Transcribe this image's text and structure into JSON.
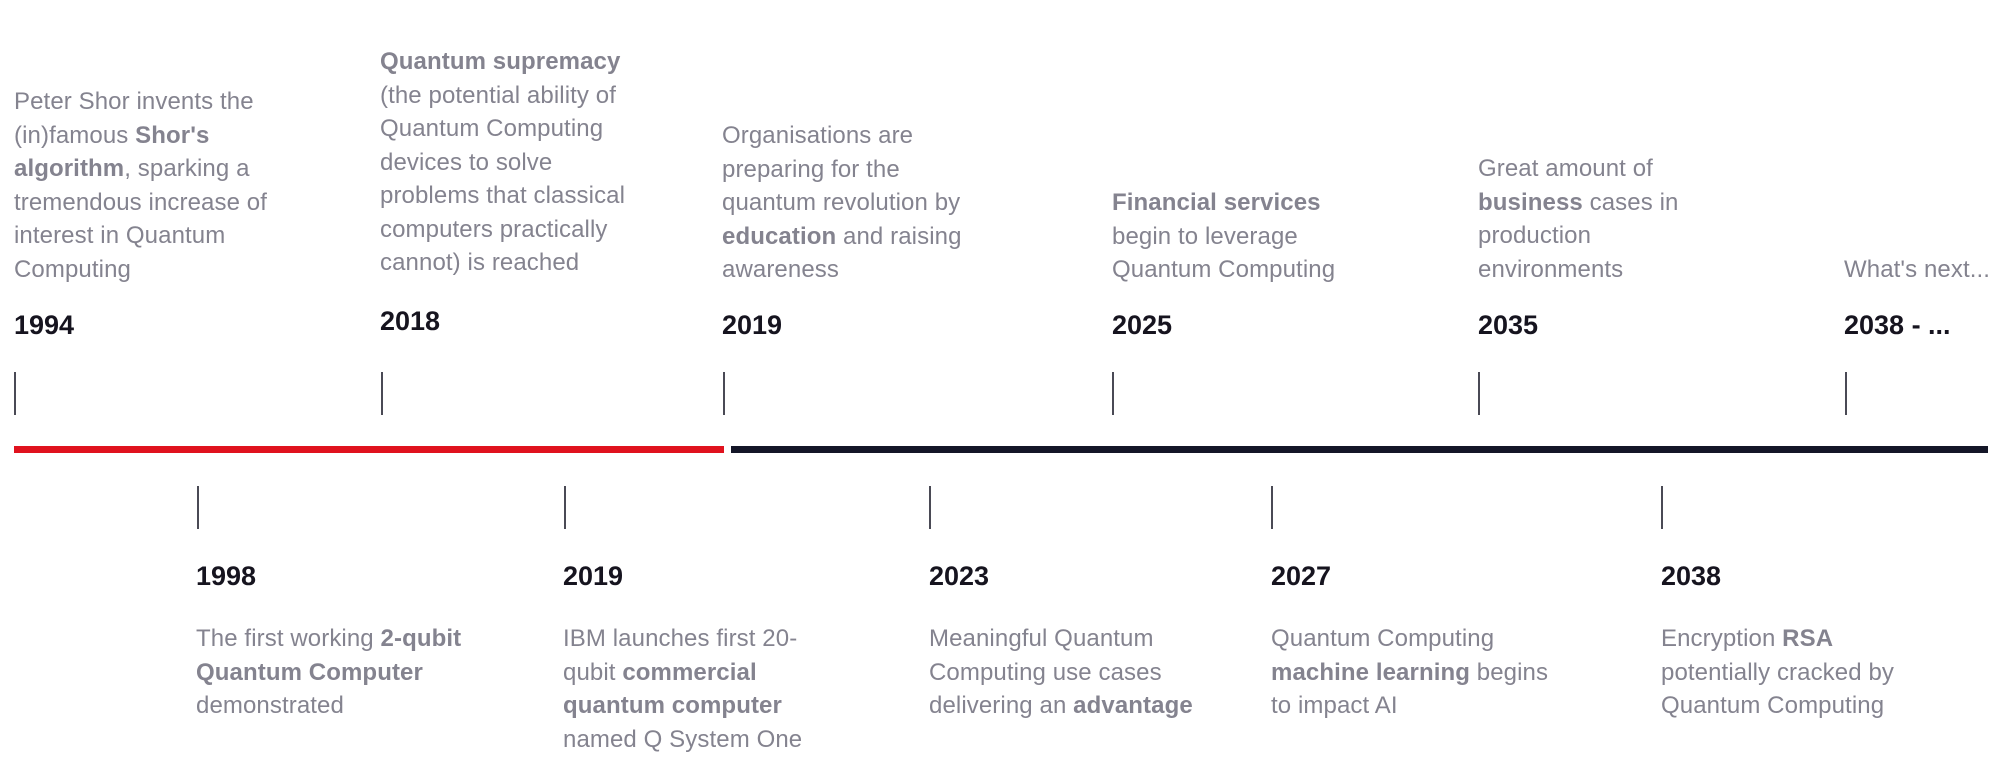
{
  "colors": {
    "past_line": "#e0121e",
    "future_line": "#141628",
    "year_text": "#16141f",
    "description_text": "#84838f"
  },
  "timeline": {
    "top_events": [
      {
        "year": "1994",
        "description": [
          {
            "text": "Peter Shor invents the (in)famous ",
            "bold": false
          },
          {
            "text": "Shor's algorithm",
            "bold": true
          },
          {
            "text": ", sparking a tremendous increase of interest in Quantum Computing",
            "bold": false
          }
        ]
      },
      {
        "year": "2018",
        "description": [
          {
            "text": "Quantum supremacy",
            "bold": true
          },
          {
            "text": " (the potential ability of Quantum Computing devices to solve problems that classical computers practically cannot) is reached",
            "bold": false
          }
        ]
      },
      {
        "year": "2019",
        "description": [
          {
            "text": "Organisations are preparing for the quantum revolution by ",
            "bold": false
          },
          {
            "text": "education",
            "bold": true
          },
          {
            "text": " and raising awareness",
            "bold": false
          }
        ]
      },
      {
        "year": "2025",
        "description": [
          {
            "text": "Financial services",
            "bold": true
          },
          {
            "text": " begin to leverage Quantum Computing",
            "bold": false
          }
        ]
      },
      {
        "year": "2035",
        "description": [
          {
            "text": "Great amount of ",
            "bold": false
          },
          {
            "text": "business",
            "bold": true
          },
          {
            "text": " cases in production environments",
            "bold": false
          }
        ]
      },
      {
        "year": "2038 - ...",
        "description": [
          {
            "text": "What's next...",
            "bold": false
          }
        ]
      }
    ],
    "bottom_events": [
      {
        "year": "1998",
        "description": [
          {
            "text": "The first working ",
            "bold": false
          },
          {
            "text": "2-qubit Quantum Computer",
            "bold": true
          },
          {
            "text": " demonstrated",
            "bold": false
          }
        ]
      },
      {
        "year": "2019",
        "description": [
          {
            "text": "IBM launches first 20-qubit ",
            "bold": false
          },
          {
            "text": "commercial quantum computer",
            "bold": true
          },
          {
            "text": " named Q System One",
            "bold": false
          }
        ]
      },
      {
        "year": "2023",
        "description": [
          {
            "text": "Meaningful Quantum Computing use cases delivering an ",
            "bold": false
          },
          {
            "text": "advantage",
            "bold": true
          }
        ]
      },
      {
        "year": "2027",
        "description": [
          {
            "text": "Quantum Computing ",
            "bold": false
          },
          {
            "text": "machine learning",
            "bold": true
          },
          {
            "text": " begins to impact AI",
            "bold": false
          }
        ]
      },
      {
        "year": "2038",
        "description": [
          {
            "text": "Encryption ",
            "bold": false
          },
          {
            "text": "RSA",
            "bold": true
          },
          {
            "text": " potentially cracked by Quantum Computing",
            "bold": false
          }
        ]
      }
    ]
  }
}
